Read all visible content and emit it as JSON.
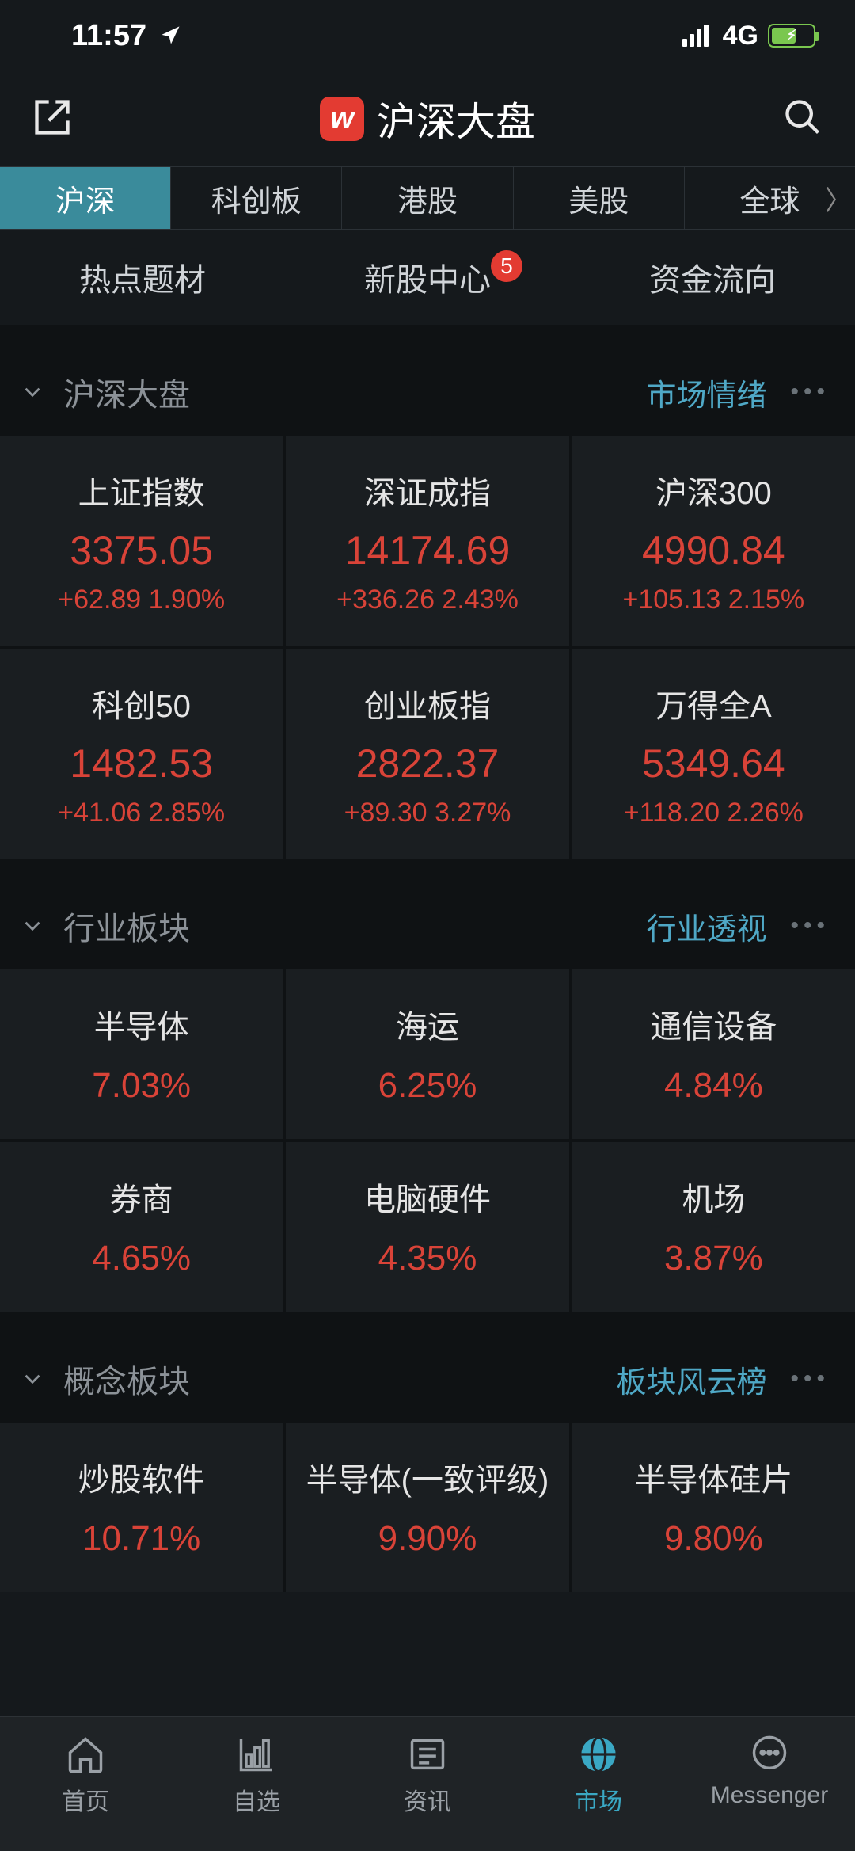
{
  "status": {
    "time": "11:57",
    "network": "4G"
  },
  "header": {
    "logo": "w",
    "title": "沪深大盘"
  },
  "marketTabs": [
    "沪深",
    "科创板",
    "港股",
    "美股",
    "全球"
  ],
  "activeMarketTab": 0,
  "subNav": [
    {
      "label": "热点题材",
      "badge": null
    },
    {
      "label": "新股中心",
      "badge": "5"
    },
    {
      "label": "资金流向",
      "badge": null
    }
  ],
  "sections": {
    "indices": {
      "title": "沪深大盘",
      "link": "市场情绪",
      "items": [
        {
          "name": "上证指数",
          "value": "3375.05",
          "change": "+62.89  1.90%",
          "dir": "up"
        },
        {
          "name": "深证成指",
          "value": "14174.69",
          "change": "+336.26  2.43%",
          "dir": "up"
        },
        {
          "name": "沪深300",
          "value": "4990.84",
          "change": "+105.13  2.15%",
          "dir": "up"
        },
        {
          "name": "科创50",
          "value": "1482.53",
          "change": "+41.06  2.85%",
          "dir": "up"
        },
        {
          "name": "创业板指",
          "value": "2822.37",
          "change": "+89.30  3.27%",
          "dir": "up"
        },
        {
          "name": "万得全A",
          "value": "5349.64",
          "change": "+118.20  2.26%",
          "dir": "up"
        }
      ]
    },
    "industry": {
      "title": "行业板块",
      "link": "行业透视",
      "items": [
        {
          "name": "半导体",
          "pct": "7.03%",
          "dir": "up"
        },
        {
          "name": "海运",
          "pct": "6.25%",
          "dir": "up"
        },
        {
          "name": "通信设备",
          "pct": "4.84%",
          "dir": "up"
        },
        {
          "name": "券商",
          "pct": "4.65%",
          "dir": "up"
        },
        {
          "name": "电脑硬件",
          "pct": "4.35%",
          "dir": "up"
        },
        {
          "name": "机场",
          "pct": "3.87%",
          "dir": "up"
        }
      ]
    },
    "concept": {
      "title": "概念板块",
      "link": "板块风云榜",
      "items": [
        {
          "name": "炒股软件",
          "pct": "10.71%",
          "dir": "up"
        },
        {
          "name": "半导体(一致评级)",
          "pct": "9.90%",
          "dir": "up"
        },
        {
          "name": "半导体硅片",
          "pct": "9.80%",
          "dir": "up"
        }
      ]
    }
  },
  "bottomNav": [
    {
      "label": "首页",
      "icon": "home"
    },
    {
      "label": "自选",
      "icon": "chart"
    },
    {
      "label": "资讯",
      "icon": "news"
    },
    {
      "label": "市场",
      "icon": "globe",
      "active": true
    },
    {
      "label": "Messenger",
      "icon": "chat"
    }
  ],
  "colors": {
    "up": "#d94338",
    "bg": "#15191c",
    "card": "#1a1e21",
    "accent": "#3a8b9b",
    "link": "#4fa8c6"
  }
}
